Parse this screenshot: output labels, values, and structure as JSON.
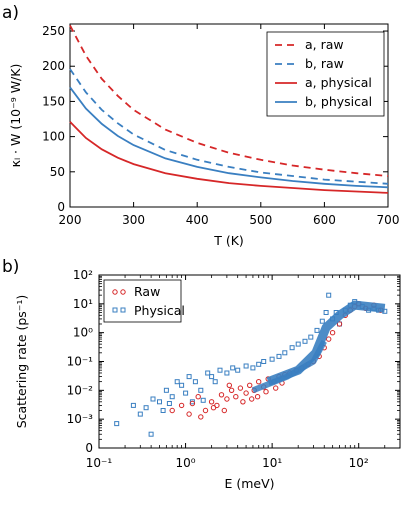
{
  "chart_data": [
    {
      "panel_label": "a)",
      "type": "line",
      "xlabel": "T (K)",
      "ylabel": "κₗ · W (10⁻⁹ W/K)",
      "xlim": [
        200,
        700
      ],
      "ylim": [
        0,
        260
      ],
      "xticks": [
        200,
        300,
        400,
        500,
        600,
        700
      ],
      "yticks": [
        0,
        50,
        100,
        150,
        200,
        250
      ],
      "legend_position": "top-right",
      "series": [
        {
          "name": "a, raw",
          "color": "#d62728",
          "dash": "dashed",
          "x": [
            200,
            225,
            250,
            275,
            300,
            350,
            400,
            450,
            500,
            550,
            600,
            650,
            700
          ],
          "y": [
            258,
            215,
            182,
            158,
            138,
            110,
            91,
            77,
            67,
            59,
            53,
            48,
            44
          ]
        },
        {
          "name": "b, raw",
          "color": "#3a7fc1",
          "dash": "dashed",
          "x": [
            200,
            225,
            250,
            275,
            300,
            350,
            400,
            450,
            500,
            550,
            600,
            650,
            700
          ],
          "y": [
            196,
            163,
            138,
            119,
            103,
            81,
            67,
            57,
            49,
            44,
            39,
            36,
            33
          ]
        },
        {
          "name": "a, physical",
          "color": "#d62728",
          "dash": "solid",
          "x": [
            200,
            225,
            250,
            275,
            300,
            350,
            400,
            450,
            500,
            550,
            600,
            650,
            700
          ],
          "y": [
            121,
            98,
            82,
            70,
            61,
            48,
            40,
            34,
            30,
            27,
            24,
            22,
            20
          ]
        },
        {
          "name": "b, physical",
          "color": "#3a7fc1",
          "dash": "solid",
          "x": [
            200,
            225,
            250,
            275,
            300,
            350,
            400,
            450,
            500,
            550,
            600,
            650,
            700
          ],
          "y": [
            170,
            140,
            118,
            101,
            88,
            69,
            57,
            48,
            42,
            37,
            33,
            30,
            28
          ]
        }
      ]
    },
    {
      "panel_label": "b)",
      "type": "scatter",
      "xlabel": "E (meV)",
      "ylabel": "Scattering rate (ps⁻¹)",
      "xscale": "log",
      "yscale": "log",
      "xlim": [
        0.1,
        300
      ],
      "ylim": [
        0,
        100
      ],
      "xtick_labels": [
        "10⁻¹",
        "10⁰",
        "10¹",
        "10²"
      ],
      "ytick_labels": [
        "0",
        "10⁻³",
        "10⁻²",
        "10⁻¹",
        "10⁰",
        "10¹",
        "10²"
      ],
      "legend_position": "top-left",
      "series": [
        {
          "name": "Raw",
          "marker": "circle",
          "color": "#d62728",
          "x": [
            0.7,
            0.9,
            1.1,
            1.2,
            1.4,
            1.7,
            2.0,
            2.3,
            2.6,
            3.0,
            3.4,
            3.8,
            4.3,
            5.0,
            5.5,
            6.2,
            7.0,
            8.0,
            9.0,
            10.5,
            12,
            14,
            16,
            19,
            22,
            26,
            30,
            35,
            40,
            45,
            50,
            60,
            70,
            80,
            90,
            100,
            120,
            150,
            180,
            2.8,
            3.2,
            4.6,
            6.8,
            8.5,
            11,
            13,
            1.5,
            2.1,
            5.8
          ],
          "y": [
            0.002,
            0.003,
            0.0015,
            0.0035,
            0.006,
            0.002,
            0.004,
            0.003,
            0.007,
            0.005,
            0.01,
            0.006,
            0.012,
            0.008,
            0.015,
            0.01,
            0.02,
            0.013,
            0.025,
            0.02,
            0.03,
            0.035,
            0.04,
            0.05,
            0.06,
            0.08,
            0.1,
            0.15,
            0.3,
            0.6,
            1.0,
            2.0,
            4.0,
            6.0,
            8.0,
            10.0,
            7.0,
            9.0,
            6.0,
            0.002,
            0.015,
            0.004,
            0.006,
            0.009,
            0.012,
            0.018,
            0.0012,
            0.0025,
            0.005
          ]
        },
        {
          "name": "Physical",
          "marker": "square",
          "color": "#3a7fc1",
          "x": [
            0.16,
            0.25,
            0.3,
            0.4,
            0.42,
            0.5,
            0.6,
            0.7,
            0.8,
            0.9,
            1.0,
            1.1,
            1.3,
            1.5,
            1.8,
            2.0,
            2.5,
            3.0,
            3.5,
            4.0,
            5.0,
            6.0,
            7.0,
            8.0,
            10,
            12,
            14,
            17,
            20,
            24,
            28,
            33,
            38,
            42,
            45,
            50,
            55,
            60,
            70,
            80,
            90,
            100,
            110,
            130,
            150,
            170,
            200,
            0.35,
            0.55,
            0.65,
            1.2,
            1.6,
            2.2
          ],
          "y": [
            0.0007,
            0.003,
            0.0015,
            0.0003,
            0.005,
            0.004,
            0.01,
            0.006,
            0.02,
            0.015,
            0.008,
            0.03,
            0.02,
            0.01,
            0.04,
            0.03,
            0.05,
            0.04,
            0.06,
            0.05,
            0.07,
            0.06,
            0.08,
            0.1,
            0.12,
            0.15,
            0.2,
            0.3,
            0.4,
            0.5,
            0.7,
            1.2,
            2.5,
            5.0,
            20.0,
            3.0,
            5.0,
            2.0,
            6.0,
            9.0,
            12.0,
            10.0,
            8.0,
            6.0,
            7.0,
            6.0,
            5.5,
            0.0025,
            0.002,
            0.0035,
            0.004,
            0.0045,
            0.02
          ]
        }
      ]
    }
  ]
}
